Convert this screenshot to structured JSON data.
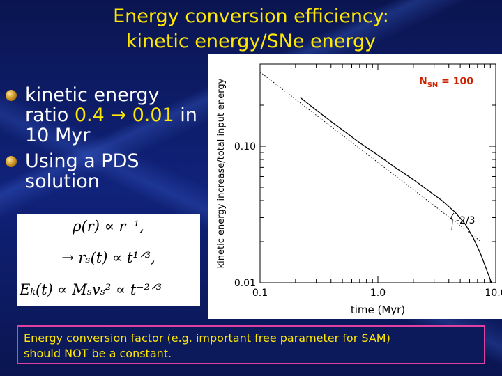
{
  "title": {
    "line1": "Energy conversion efficiency:",
    "line2": "kinetic energy/SNe energy"
  },
  "bullets": [
    {
      "text_pre": "kinetic energy ratio ",
      "highlight": "0.4 → 0.01",
      "text_post": " in 10 Myr"
    },
    {
      "text_pre": "Using a PDS solution",
      "highlight": "",
      "text_post": ""
    }
  ],
  "equations": {
    "eq1": "ρ(r) ∝ r⁻¹,",
    "eq2": "→ rₛ(t) ∝ t¹ᐟ³,",
    "eq3": "Eₖ(t) ∝ Mₛvₛ² ∝ t⁻²ᐟ³"
  },
  "footer": {
    "line1": "Energy conversion factor (e.g. important free parameter for SAM)",
    "line2": "should NOT be a constant."
  },
  "chart_data": {
    "type": "line",
    "scale": "log-log",
    "xlabel": "time (Myr)",
    "ylabel": "kinetic energy increase/total input energy",
    "xlim": [
      0.1,
      10.0
    ],
    "ylim": [
      0.01,
      0.4
    ],
    "x_ticks": [
      {
        "value": 0.1,
        "label": "0.1"
      },
      {
        "value": 1.0,
        "label": "1.0"
      },
      {
        "value": 10.0,
        "label": "10.0"
      }
    ],
    "y_ticks": [
      {
        "value": 0.1,
        "label": "0.10"
      },
      {
        "value": 0.01,
        "label": "0.01"
      }
    ],
    "annotation": {
      "label": "N",
      "subscript": "SN",
      "suffix": " = 100",
      "color": "#cc2200"
    },
    "slope_label": "-2/3",
    "series": [
      {
        "style": "solid",
        "x": [
          0.22,
          0.3,
          0.4,
          0.55,
          0.7,
          1.0,
          1.4,
          2.0,
          2.8,
          3.5,
          4.5,
          5.5,
          6.5,
          7.5,
          8.5,
          9.2
        ],
        "y": [
          0.227,
          0.184,
          0.152,
          0.124,
          0.106,
          0.086,
          0.07,
          0.057,
          0.046,
          0.04,
          0.033,
          0.027,
          0.021,
          0.016,
          0.012,
          0.01
        ]
      },
      {
        "style": "dotted",
        "x": [
          0.1,
          7.5
        ],
        "y": [
          0.35,
          0.02
        ]
      }
    ]
  }
}
